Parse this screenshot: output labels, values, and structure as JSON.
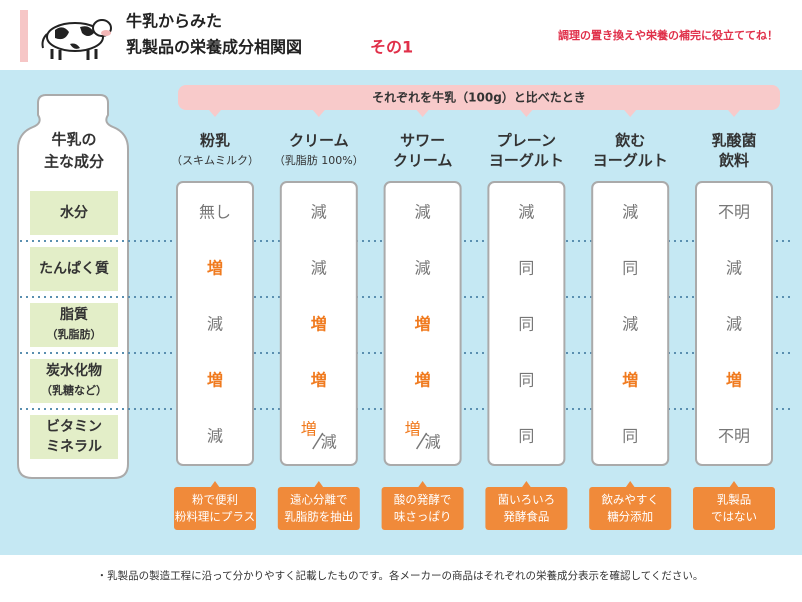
{
  "header": {
    "title_lines": [
      "牛乳からみた",
      "乳製品の栄養成分相関図"
    ],
    "title_suffix": "その1",
    "tagline": "調理の置き換えや栄養の補完に役立ててね！"
  },
  "banner": "それぞれを牛乳（100g）と比べたとき",
  "row_header": [
    "牛乳の",
    "主な成分"
  ],
  "rows": [
    [
      "水分"
    ],
    [
      "たんぱく質"
    ],
    [
      "脂質",
      "（乳脂肪）"
    ],
    [
      "炭水化物",
      "（乳糖など）"
    ],
    [
      "ビタミン",
      "ミネラル"
    ]
  ],
  "columns": [
    {
      "name": [
        "粉乳",
        "（スキムミルク）"
      ],
      "cells": [
        "無し",
        "増",
        "減",
        "増",
        "減"
      ],
      "note": [
        "粉で便利",
        "粉料理にプラス"
      ]
    },
    {
      "name": [
        "クリーム",
        "（乳脂肪 100%）"
      ],
      "cells": [
        "減",
        "減",
        "増",
        "増",
        [
          "増",
          "減"
        ]
      ],
      "note": [
        "遠心分離で",
        "乳脂肪を抽出"
      ]
    },
    {
      "name": [
        "サワー",
        "クリーム"
      ],
      "cells": [
        "減",
        "減",
        "増",
        "増",
        [
          "増",
          "減"
        ]
      ],
      "note": [
        "酸の発酵で",
        "味さっぱり"
      ]
    },
    {
      "name": [
        "プレーン",
        "ヨーグルト"
      ],
      "cells": [
        "減",
        "同",
        "同",
        "同",
        "同"
      ],
      "note": [
        "菌いろいろ",
        "発酵食品"
      ]
    },
    {
      "name": [
        "飲む",
        "ヨーグルト"
      ],
      "cells": [
        "減",
        "同",
        "減",
        "増",
        "同"
      ],
      "note": [
        "飲みやすく",
        "糖分添加"
      ]
    },
    {
      "name": [
        "乳酸菌",
        "飲料"
      ],
      "cells": [
        "不明",
        "減",
        "減",
        "増",
        "不明"
      ],
      "note": [
        "乳製品",
        "ではない"
      ]
    }
  ],
  "footnote": "・乳製品の製造工程に沿って分かりやすく記載したものです。各メーカーの商品はそれぞれの栄養成分表示を確認してください。"
}
